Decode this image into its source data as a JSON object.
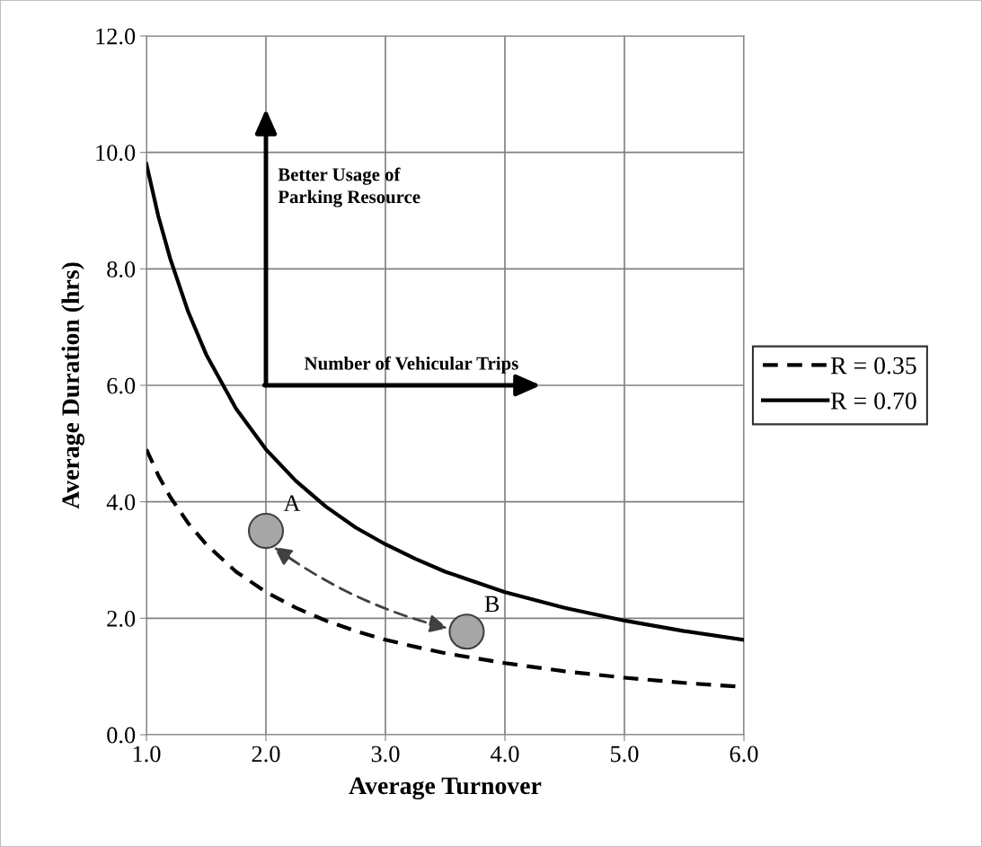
{
  "chart_data": {
    "type": "line",
    "xlabel": "Average Turnover",
    "ylabel": "Average Duration (hrs)",
    "xlim": [
      1.0,
      6.0
    ],
    "xticks": [
      {
        "value": 1,
        "label": "1.0"
      },
      {
        "value": 2,
        "label": "2.0"
      },
      {
        "value": 3,
        "label": "3.0"
      },
      {
        "value": 4,
        "label": "4.0"
      },
      {
        "value": 5,
        "label": "5.0"
      },
      {
        "value": 6,
        "label": "6.0"
      }
    ],
    "ylim": [
      0,
      12
    ],
    "yticks": [
      {
        "value": 0,
        "label": "0.0"
      },
      {
        "value": 2,
        "label": "2.0"
      },
      {
        "value": 4,
        "label": "4.0"
      },
      {
        "value": 6,
        "label": "6.0"
      },
      {
        "value": 8,
        "label": "8.0"
      },
      {
        "value": 10,
        "label": "10.0"
      },
      {
        "value": 12,
        "label": "12.0"
      }
    ],
    "grid": true,
    "legend": "right",
    "series": [
      {
        "name": "R = 0.35",
        "color": "#000000",
        "line_style": "dashed",
        "marker": "none",
        "x": [
          1.0,
          1.1,
          1.2,
          1.35,
          1.5,
          1.75,
          2.0,
          2.25,
          2.5,
          2.75,
          3.0,
          3.25,
          3.5,
          4.0,
          4.5,
          5.0,
          5.5,
          6.0
        ],
        "values": [
          4.9,
          4.45,
          4.08,
          3.63,
          3.27,
          2.8,
          2.45,
          2.18,
          1.96,
          1.78,
          1.63,
          1.51,
          1.4,
          1.23,
          1.09,
          0.98,
          0.89,
          0.82
        ]
      },
      {
        "name": "R = 0.70",
        "color": "#000000",
        "line_style": "solid",
        "marker": "none",
        "x": [
          1.0,
          1.1,
          1.2,
          1.35,
          1.5,
          1.75,
          2.0,
          2.25,
          2.5,
          2.75,
          3.0,
          3.25,
          3.5,
          4.0,
          4.5,
          5.0,
          5.5,
          6.0
        ],
        "values": [
          9.8,
          8.9,
          8.17,
          7.26,
          6.53,
          5.6,
          4.9,
          4.36,
          3.92,
          3.56,
          3.27,
          3.02,
          2.8,
          2.45,
          2.18,
          1.96,
          1.78,
          1.63
        ]
      },
      {
        "type": "scatter",
        "color": "#a6a6a6",
        "marker": "circle",
        "x": [
          2.0,
          3.68
        ],
        "values": [
          3.5,
          1.77
        ]
      }
    ],
    "annotations": [
      {
        "text": "A",
        "x": 2.0,
        "y": 3.5
      },
      {
        "text": "B",
        "x": 3.68,
        "y": 1.77
      },
      "Better Usage of\nParking Resource",
      "Number of Vehicular Trips"
    ]
  }
}
